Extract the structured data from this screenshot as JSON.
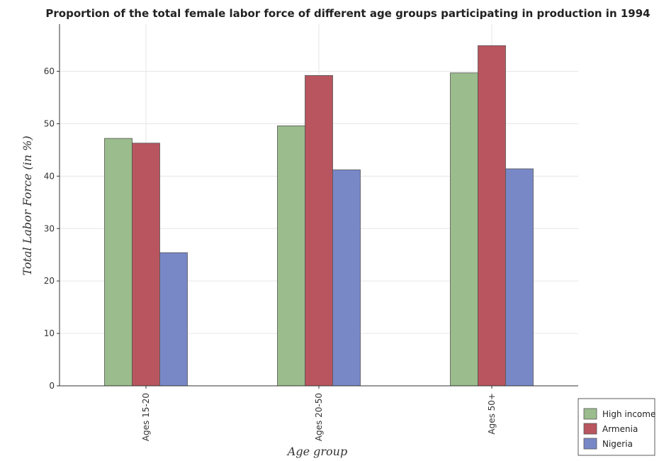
{
  "chart_data": {
    "type": "bar",
    "title": "Proportion of the total female labor force of different age groups participating in production in 1994",
    "xlabel": "Age group",
    "ylabel": "Total Labor Force (in %)",
    "categories": [
      "Ages 15-20",
      "Ages 20-50",
      "Ages 50+"
    ],
    "series": [
      {
        "name": "High income",
        "color": "#9bbc8c",
        "values": [
          47.2,
          49.6,
          59.7
        ]
      },
      {
        "name": "Armenia",
        "color": "#b8555e",
        "values": [
          46.3,
          59.2,
          64.9
        ]
      },
      {
        "name": "Nigeria",
        "color": "#7888c7",
        "values": [
          25.4,
          41.2,
          41.4
        ]
      }
    ],
    "ylim": [
      0,
      69
    ],
    "yticks": [
      0,
      10,
      20,
      30,
      40,
      50,
      60
    ],
    "grid": true,
    "legend_position": "bottom-right"
  }
}
